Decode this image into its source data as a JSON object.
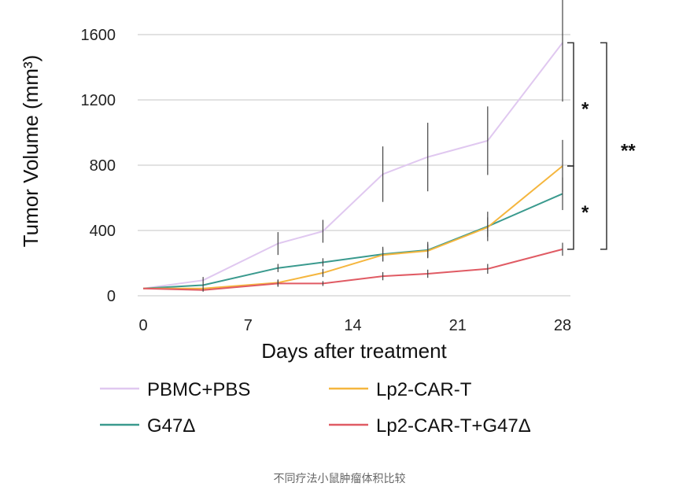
{
  "chart_data": {
    "type": "line",
    "title": "",
    "xlabel": "Days after treatment",
    "ylabel": "Tumor Volume (mm³)",
    "x": [
      0,
      4,
      9,
      12,
      16,
      19,
      23,
      28
    ],
    "x_ticks": [
      0,
      7,
      14,
      21,
      28
    ],
    "x_tick_labels": [
      "0",
      "7",
      "14",
      "21",
      "28"
    ],
    "xlim": [
      0,
      28
    ],
    "y_ticks": [
      0,
      400,
      800,
      1200,
      1600
    ],
    "y_tick_labels": [
      "0",
      "400",
      "800",
      "1200",
      "1600"
    ],
    "ylim": [
      0,
      1700
    ],
    "grid": "horizontal",
    "legend_position": "bottom",
    "series": [
      {
        "name": "PBMC+PBS",
        "color": "#e0c8f0",
        "values": [
          45,
          95,
          320,
          395,
          745,
          850,
          950,
          1550
        ],
        "error": [
          0,
          20,
          70,
          70,
          170,
          210,
          210,
          360
        ]
      },
      {
        "name": "G47Δ",
        "color": "#3a9a8e",
        "values": [
          45,
          65,
          170,
          205,
          255,
          280,
          425,
          625
        ],
        "error": [
          0,
          10,
          25,
          25,
          45,
          50,
          90,
          100
        ]
      },
      {
        "name": "Lp2-CAR-T",
        "color": "#f5b63e",
        "values": [
          45,
          45,
          80,
          140,
          250,
          275,
          420,
          795
        ],
        "error": [
          0,
          10,
          20,
          25,
          40,
          40,
          60,
          160
        ]
      },
      {
        "name": "Lp2-CAR-T+G47Δ",
        "color": "#e05b64",
        "values": [
          45,
          35,
          75,
          75,
          120,
          135,
          165,
          285
        ],
        "error": [
          0,
          10,
          20,
          15,
          25,
          25,
          30,
          40
        ]
      }
    ],
    "significance": [
      {
        "label": "*",
        "from": 1550,
        "to": 795
      },
      {
        "label": "*",
        "from": 795,
        "to": 285
      },
      {
        "label": "**",
        "from": 1550,
        "to": 285
      }
    ]
  },
  "caption": "不同疗法小鼠肿瘤体积比较"
}
